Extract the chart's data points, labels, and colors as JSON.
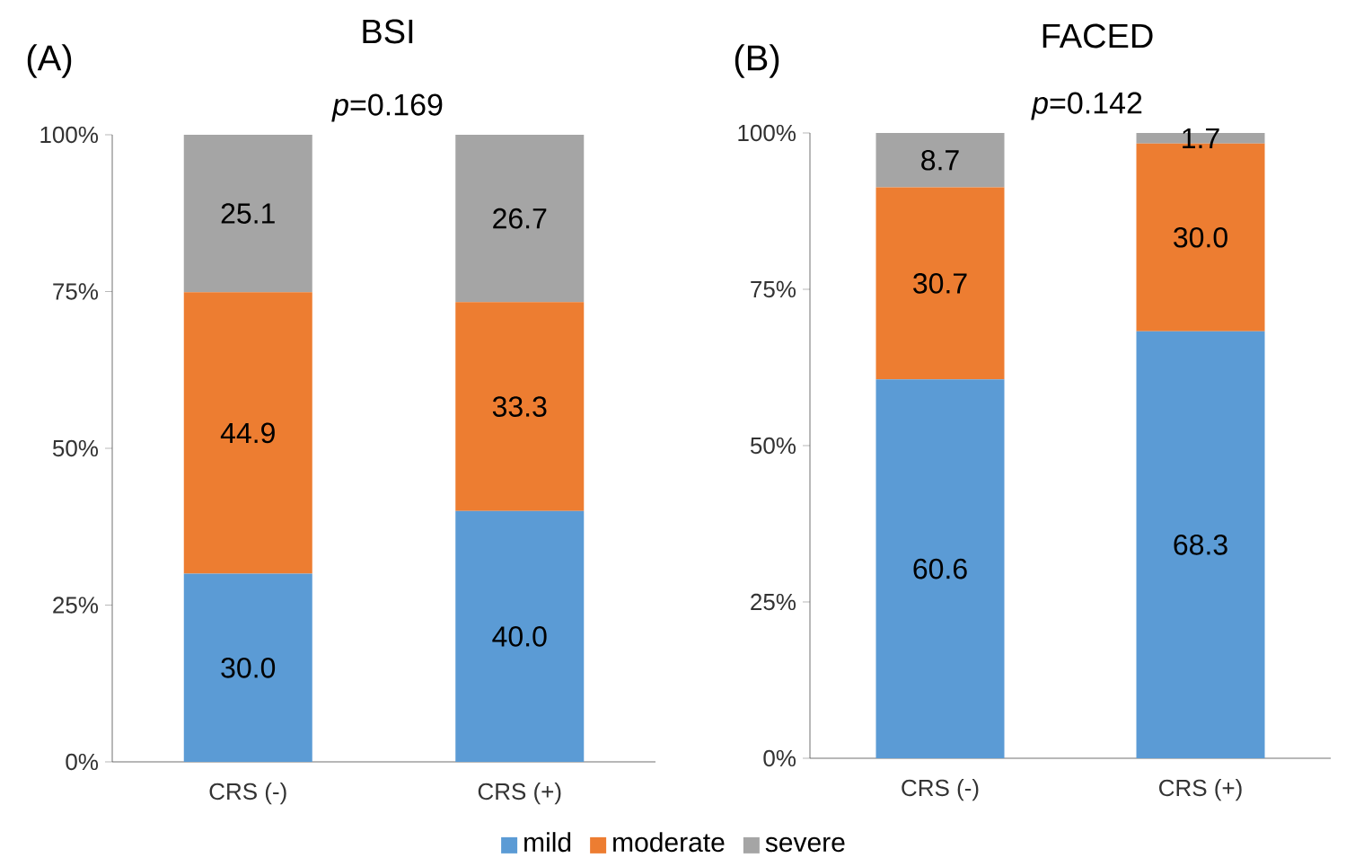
{
  "chart_data": [
    {
      "type": "bar",
      "title": "BSI",
      "annotations": [
        "(A)",
        "*p*=0.169"
      ],
      "categories": [
        "CRS (-)",
        "CRS (+)"
      ],
      "stacked": true,
      "legend": "bottom",
      "ylim": [
        0,
        100
      ],
      "yticks": [
        {
          "value": 0,
          "label": "0%"
        },
        {
          "value": 25,
          "label": "25%"
        },
        {
          "value": 50,
          "label": "50%"
        },
        {
          "value": 75,
          "label": "75%"
        },
        {
          "value": 100,
          "label": "100%"
        }
      ],
      "series": [
        {
          "name": "mild",
          "color": "#5b9bd5",
          "values": [
            30.0,
            40.0
          ],
          "value_labels": [
            "30.0",
            "40.0"
          ]
        },
        {
          "name": "moderate",
          "color": "#ed7d31",
          "values": [
            44.9,
            33.3
          ],
          "value_labels": [
            "44.9",
            "33.3"
          ]
        },
        {
          "name": "severe",
          "color": "#a5a5a5",
          "values": [
            25.1,
            26.7
          ],
          "value_labels": [
            "25.1",
            "26.7"
          ]
        }
      ]
    },
    {
      "type": "bar",
      "title": "FACED",
      "annotations": [
        "(B)",
        "*p*=0.142"
      ],
      "categories": [
        "CRS (-)",
        "CRS (+)"
      ],
      "stacked": true,
      "ylim": [
        0,
        100
      ],
      "yticks": [
        {
          "value": 0,
          "label": "0%"
        },
        {
          "value": 25,
          "label": "25%"
        },
        {
          "value": 50,
          "label": "50%"
        },
        {
          "value": 75,
          "label": "75%"
        },
        {
          "value": 100,
          "label": "100%"
        }
      ],
      "series": [
        {
          "color": "#5b9bd5",
          "values": [
            60.6,
            68.3
          ],
          "value_labels": [
            "60.6",
            "68.3"
          ]
        },
        {
          "color": "#ed7d31",
          "values": [
            30.7,
            30.0
          ],
          "value_labels": [
            "30.7",
            "30.0"
          ]
        },
        {
          "color": "#a5a5a5",
          "values": [
            8.7,
            1.7
          ],
          "value_labels": [
            "8.7",
            "1.7"
          ]
        }
      ]
    }
  ]
}
